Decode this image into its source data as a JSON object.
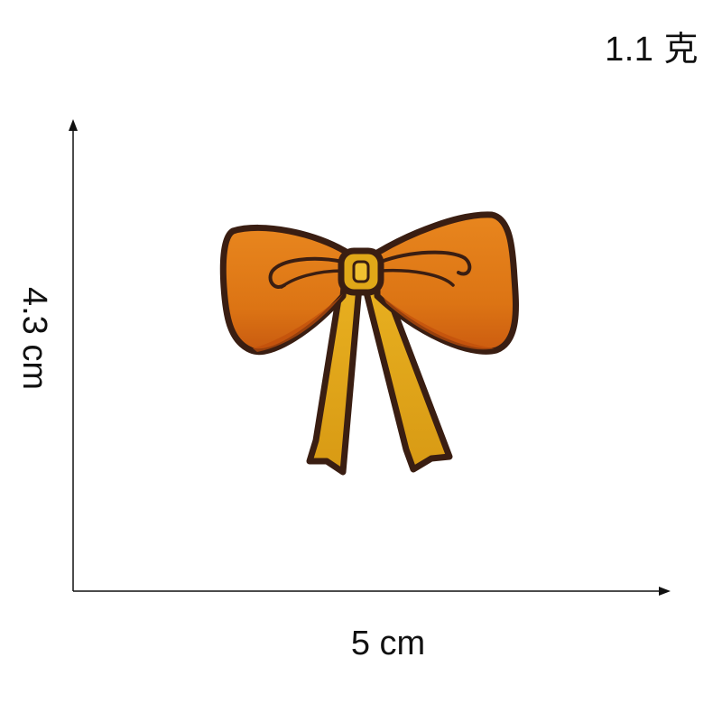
{
  "labels": {
    "weight": "1.1 克",
    "width": "5 cm",
    "height": "4.3 cm"
  },
  "product": {
    "icon": "bow-patch-icon",
    "colors": {
      "bow_orange": "#e07818",
      "bow_dark_orange": "#c85a10",
      "ribbon_yellow": "#e0a818",
      "outline": "#3a1e12"
    }
  }
}
